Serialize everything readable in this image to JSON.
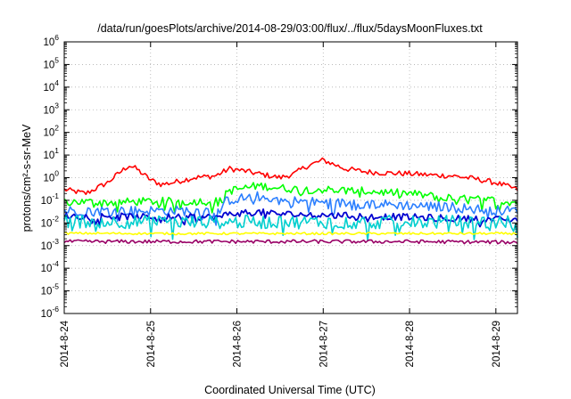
{
  "chart_data": {
    "type": "line",
    "title": "/data/run/goesPlots/archive/2014-08-29/03:00/flux/../flux/5daysMoonFluxes.txt",
    "xlabel": "Coordinated Universal Time (UTC)",
    "ylabel": "protons/cm²-s-sr-MeV",
    "yscale": "log",
    "ylim": [
      1e-06,
      1000000.0
    ],
    "xlim": [
      "2014-08-24",
      "2014-08-29 06:00"
    ],
    "grid": true,
    "x_ticks": [
      "2014-8-24",
      "2014-8-25",
      "2014-8-26",
      "2014-8-27",
      "2014-8-28",
      "2014-8-29"
    ],
    "y_ticks": [
      {
        "value": 1e-06,
        "base": "10",
        "exp": "-6"
      },
      {
        "value": 1e-05,
        "base": "10",
        "exp": "-5"
      },
      {
        "value": 0.0001,
        "base": "10",
        "exp": "-4"
      },
      {
        "value": 0.001,
        "base": "10",
        "exp": "-3"
      },
      {
        "value": 0.01,
        "base": "10",
        "exp": "-2"
      },
      {
        "value": 0.1,
        "base": "10",
        "exp": "-1"
      },
      {
        "value": 1,
        "base": "10",
        "exp": "0"
      },
      {
        "value": 10,
        "base": "10",
        "exp": "1"
      },
      {
        "value": 100,
        "base": "10",
        "exp": "2"
      },
      {
        "value": 1000,
        "base": "10",
        "exp": "3"
      },
      {
        "value": 10000,
        "base": "10",
        "exp": "4"
      },
      {
        "value": 100000,
        "base": "10",
        "exp": "5"
      },
      {
        "value": 1000000,
        "base": "10",
        "exp": "6"
      }
    ],
    "series": [
      {
        "color": "#ff0000",
        "noise": 0.12,
        "x": [
          "2014-08-24 00:00",
          "2014-08-24 06:00",
          "2014-08-24 12:00",
          "2014-08-24 16:00",
          "2014-08-24 18:00",
          "2014-08-24 20:00",
          "2014-08-25 00:00",
          "2014-08-25 03:00",
          "2014-08-25 06:00",
          "2014-08-25 12:00",
          "2014-08-25 18:00",
          "2014-08-25 22:00",
          "2014-08-26 02:00",
          "2014-08-26 05:00",
          "2014-08-26 12:00",
          "2014-08-26 16:00",
          "2014-08-26 19:00",
          "2014-08-26 21:00",
          "2014-08-27 00:00",
          "2014-08-27 06:00",
          "2014-08-27 12:00",
          "2014-08-27 18:00",
          "2014-08-28 00:00",
          "2014-08-28 06:00",
          "2014-08-28 12:00",
          "2014-08-28 18:00",
          "2014-08-29 00:00",
          "2014-08-29 06:00"
        ],
        "y": [
          0.3,
          0.2,
          0.6,
          2.0,
          3.5,
          2.5,
          0.8,
          0.5,
          0.6,
          1.0,
          1.2,
          2.5,
          2.0,
          1.6,
          1.0,
          1.5,
          3.0,
          4.0,
          6.0,
          2.5,
          1.8,
          1.6,
          1.5,
          1.3,
          1.2,
          0.9,
          0.6,
          0.3
        ]
      },
      {
        "color": "#00ff00",
        "noise": 0.18,
        "x": [
          "2014-08-24 00:00",
          "2014-08-24 12:00",
          "2014-08-25 00:00",
          "2014-08-25 12:00",
          "2014-08-25 20:00",
          "2014-08-25 21:00",
          "2014-08-26 06:00",
          "2014-08-26 12:00",
          "2014-08-26 18:00",
          "2014-08-27 00:00",
          "2014-08-27 12:00",
          "2014-08-28 00:00",
          "2014-08-28 12:00",
          "2014-08-29 00:00",
          "2014-08-29 06:00"
        ],
        "y": [
          0.09,
          0.08,
          0.09,
          0.09,
          0.09,
          0.25,
          0.45,
          0.35,
          0.3,
          0.3,
          0.25,
          0.2,
          0.12,
          0.1,
          0.08
        ]
      },
      {
        "color": "#2b7fff",
        "noise": 0.22,
        "x": [
          "2014-08-24 00:00",
          "2014-08-24 12:00",
          "2014-08-25 00:00",
          "2014-08-25 12:00",
          "2014-08-25 20:00",
          "2014-08-25 21:00",
          "2014-08-26 06:00",
          "2014-08-26 12:00",
          "2014-08-26 18:00",
          "2014-08-27 00:00",
          "2014-08-27 12:00",
          "2014-08-28 00:00",
          "2014-08-28 12:00",
          "2014-08-29 00:00",
          "2014-08-29 06:00"
        ],
        "y": [
          0.035,
          0.035,
          0.035,
          0.035,
          0.035,
          0.1,
          0.15,
          0.1,
          0.09,
          0.08,
          0.07,
          0.06,
          0.05,
          0.035,
          0.035
        ]
      },
      {
        "color": "#0000d0",
        "noise": 0.15,
        "x": [
          "2014-08-24 00:00",
          "2014-08-24 12:00",
          "2014-08-25 00:00",
          "2014-08-25 12:00",
          "2014-08-25 20:00",
          "2014-08-25 21:00",
          "2014-08-26 06:00",
          "2014-08-26 12:00",
          "2014-08-27 00:00",
          "2014-08-27 12:00",
          "2014-08-28 00:00",
          "2014-08-28 12:00",
          "2014-08-29 00:00",
          "2014-08-29 06:00"
        ],
        "y": [
          0.02,
          0.02,
          0.018,
          0.018,
          0.018,
          0.025,
          0.03,
          0.025,
          0.022,
          0.02,
          0.018,
          0.016,
          0.014,
          0.014
        ]
      },
      {
        "color": "#00cfcf",
        "noise": 0.3,
        "x": [
          "2014-08-24 00:00",
          "2014-08-25 00:00",
          "2014-08-26 00:00",
          "2014-08-27 00:00",
          "2014-08-28 00:00",
          "2014-08-29 06:00"
        ],
        "y": [
          0.012,
          0.011,
          0.011,
          0.011,
          0.011,
          0.011
        ]
      },
      {
        "color": "#ffff00",
        "noise": 0.05,
        "x": [
          "2014-08-24 00:00",
          "2014-08-25 00:00",
          "2014-08-26 00:00",
          "2014-08-27 00:00",
          "2014-08-28 00:00",
          "2014-08-29 06:00"
        ],
        "y": [
          0.0035,
          0.0034,
          0.0034,
          0.0034,
          0.0034,
          0.0034
        ]
      },
      {
        "color": "#990066",
        "noise": 0.08,
        "x": [
          "2014-08-24 00:00",
          "2014-08-25 00:00",
          "2014-08-26 00:00",
          "2014-08-27 00:00",
          "2014-08-28 00:00",
          "2014-08-29 06:00"
        ],
        "y": [
          0.0015,
          0.0015,
          0.0015,
          0.0015,
          0.0015,
          0.0014
        ]
      }
    ]
  }
}
